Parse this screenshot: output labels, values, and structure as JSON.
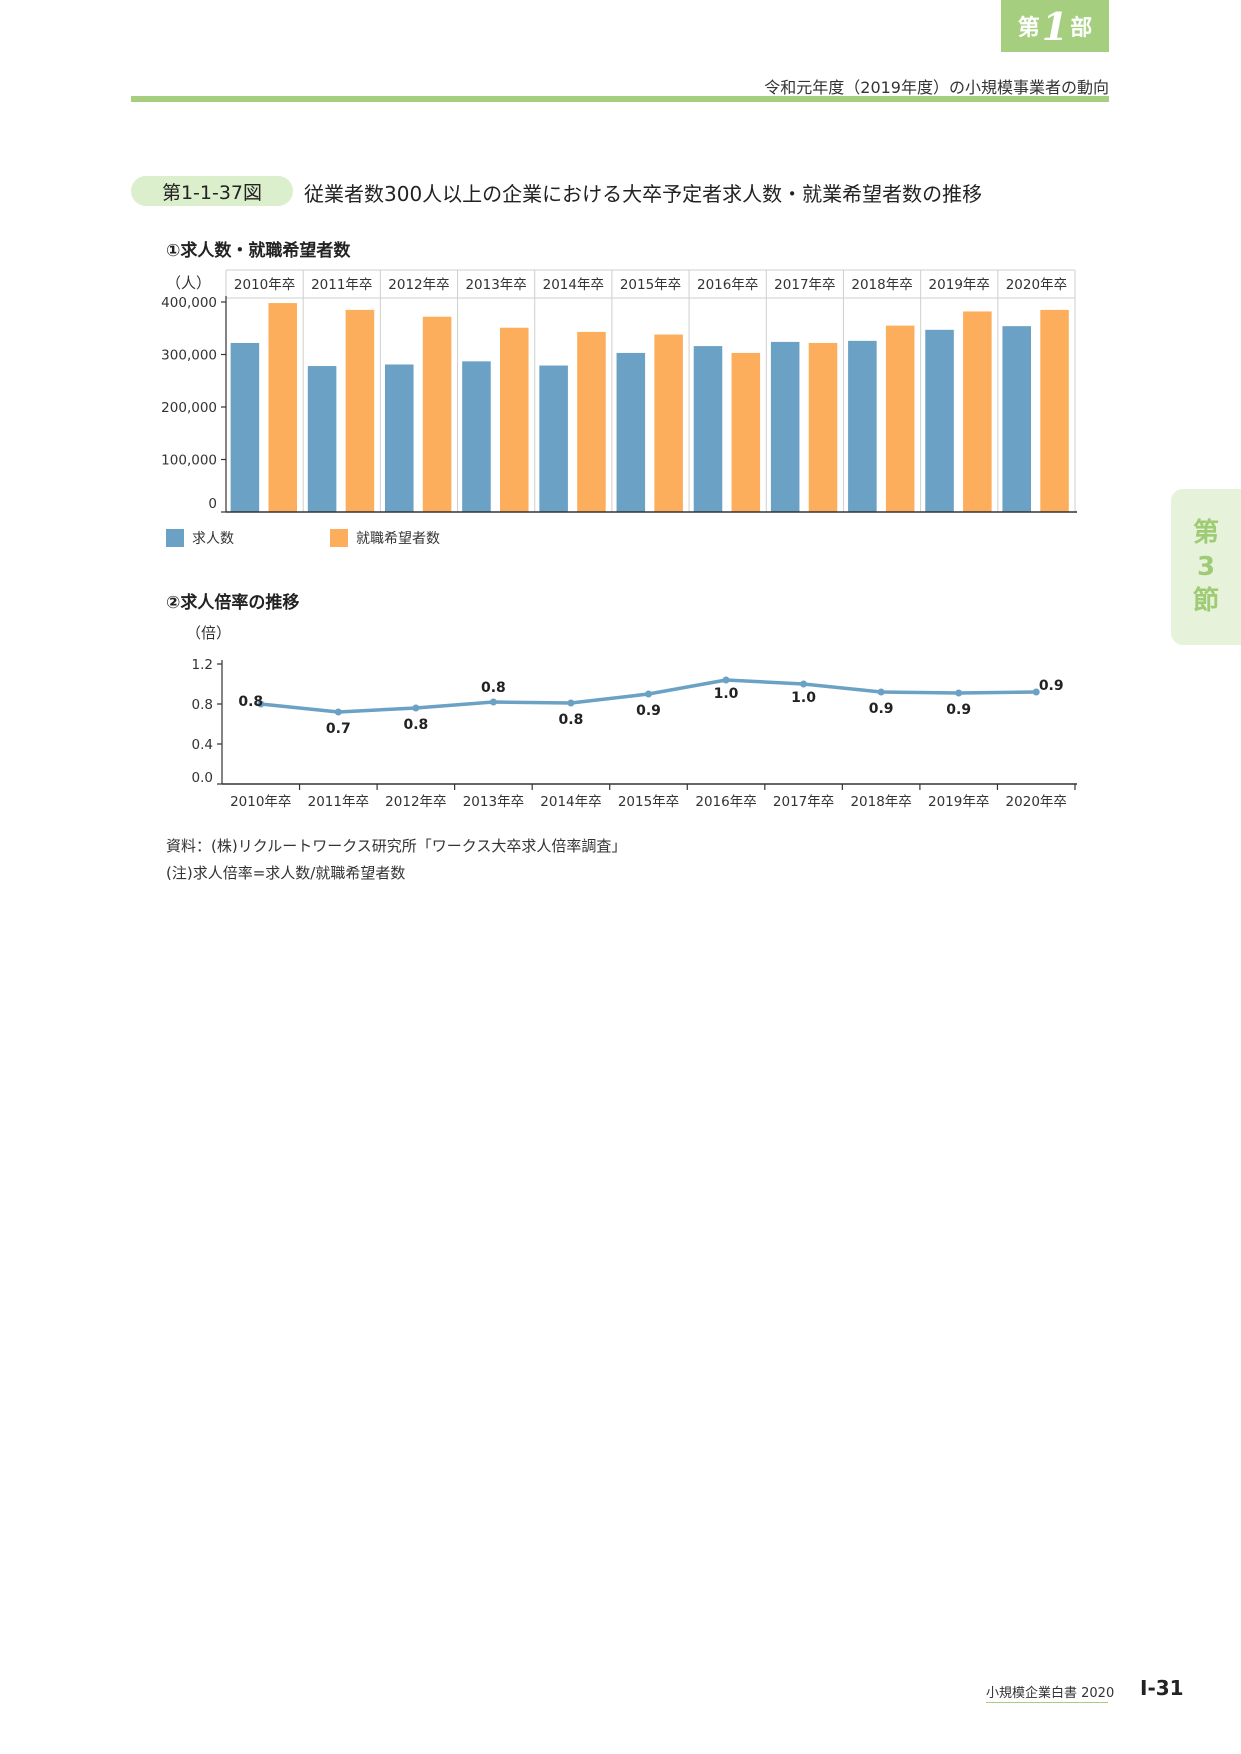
{
  "header": {
    "part_prefix": "第",
    "part_number": "1",
    "part_suffix": "部",
    "running_title": "令和元年度（2019年度）の小規模事業者の動向"
  },
  "figure": {
    "label": "第1-1-37図",
    "title": "従業者数300人以上の企業における大卒予定者求人数・就業希望者数の推移"
  },
  "chart1": {
    "subtitle": "①求人数・就職希望者数",
    "unit": "（人）",
    "legend": [
      "求人数",
      "就職希望者数"
    ]
  },
  "chart2": {
    "subtitle": "②求人倍率の推移",
    "unit": "（倍）"
  },
  "chart_data": [
    {
      "type": "bar",
      "categories": [
        "2010年卒",
        "2011年卒",
        "2012年卒",
        "2013年卒",
        "2014年卒",
        "2015年卒",
        "2016年卒",
        "2017年卒",
        "2018年卒",
        "2019年卒",
        "2020年卒"
      ],
      "series": [
        {
          "name": "求人数",
          "color": "#6ba1c4",
          "values": [
            322000,
            278000,
            281000,
            287000,
            279000,
            303000,
            316000,
            324000,
            326000,
            347000,
            354000
          ]
        },
        {
          "name": "就職希望者数",
          "color": "#fdae5c",
          "values": [
            398000,
            385000,
            372000,
            351000,
            343000,
            338000,
            303000,
            322000,
            355000,
            382000,
            385000
          ]
        }
      ],
      "ylabel": "（人）",
      "ylim": [
        0,
        400000
      ],
      "yticks": [
        "0",
        "100,000",
        "200,000",
        "300,000",
        "400,000"
      ],
      "yticks_values": [
        0,
        100000,
        200000,
        300000,
        400000
      ],
      "legend_position": "bottom-left"
    },
    {
      "type": "line",
      "x": [
        "2010年卒",
        "2011年卒",
        "2012年卒",
        "2013年卒",
        "2014年卒",
        "2015年卒",
        "2016年卒",
        "2017年卒",
        "2018年卒",
        "2019年卒",
        "2020年卒"
      ],
      "series": [
        {
          "name": "",
          "color": "#6ba1c4",
          "values": [
            0.8,
            0.72,
            0.76,
            0.82,
            0.81,
            0.9,
            1.04,
            1.0,
            0.92,
            0.91,
            0.92
          ],
          "labels": [
            "0.8",
            "0.7",
            "0.8",
            "0.8",
            "0.8",
            "0.9",
            "1.0",
            "1.0",
            "0.9",
            "0.9",
            "0.9"
          ]
        }
      ],
      "ylabel": "（倍）",
      "ylim": [
        0,
        1.2
      ],
      "yticks": [
        "0.0",
        "0.4",
        "0.8",
        "1.2"
      ],
      "yticks_values": [
        0,
        0.4,
        0.8,
        1.2
      ]
    }
  ],
  "notes": [
    "資料：(株)リクルートワークス研究所「ワークス大卒求人倍率調査」",
    "(注)求人倍率=求人数/就職希望者数"
  ],
  "side_tab": [
    "第",
    "3",
    "節"
  ],
  "footer": {
    "book": "小規模企業白書 2020",
    "page": "Ⅰ-31"
  }
}
